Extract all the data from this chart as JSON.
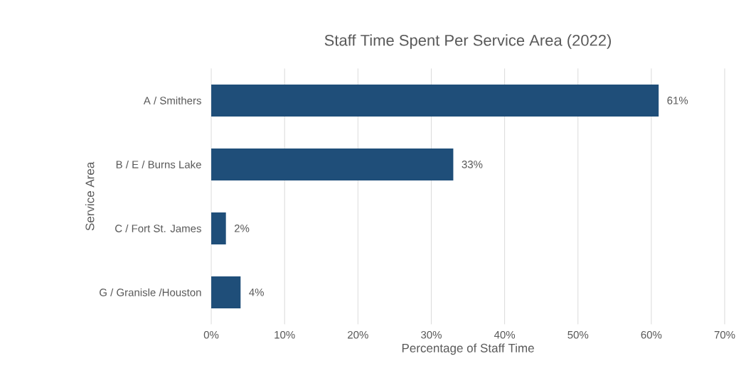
{
  "chart_data": {
    "type": "bar",
    "orientation": "horizontal",
    "title": "Staff Time Spent Per Service Area (2022)",
    "xlabel": "Percentage of Staff Time",
    "ylabel": "Service Area",
    "categories": [
      "A / Smithers",
      "B / E / Burns Lake",
      "C / Fort St. James",
      "G / Granisle /Houston"
    ],
    "values": [
      61,
      33,
      2,
      4
    ],
    "color": "#1f4e79",
    "value_labels": [
      "61%",
      "33%",
      "2%",
      "4%"
    ],
    "xlim": [
      0,
      70
    ],
    "xticks": [
      {
        "value": 0,
        "label": "0%"
      },
      {
        "value": 10,
        "label": "10%"
      },
      {
        "value": 20,
        "label": "20%"
      },
      {
        "value": 30,
        "label": "30%"
      },
      {
        "value": 40,
        "label": "40%"
      },
      {
        "value": 50,
        "label": "50%"
      },
      {
        "value": 60,
        "label": "60%"
      },
      {
        "value": 70,
        "label": "70%"
      }
    ],
    "grid": "x"
  }
}
